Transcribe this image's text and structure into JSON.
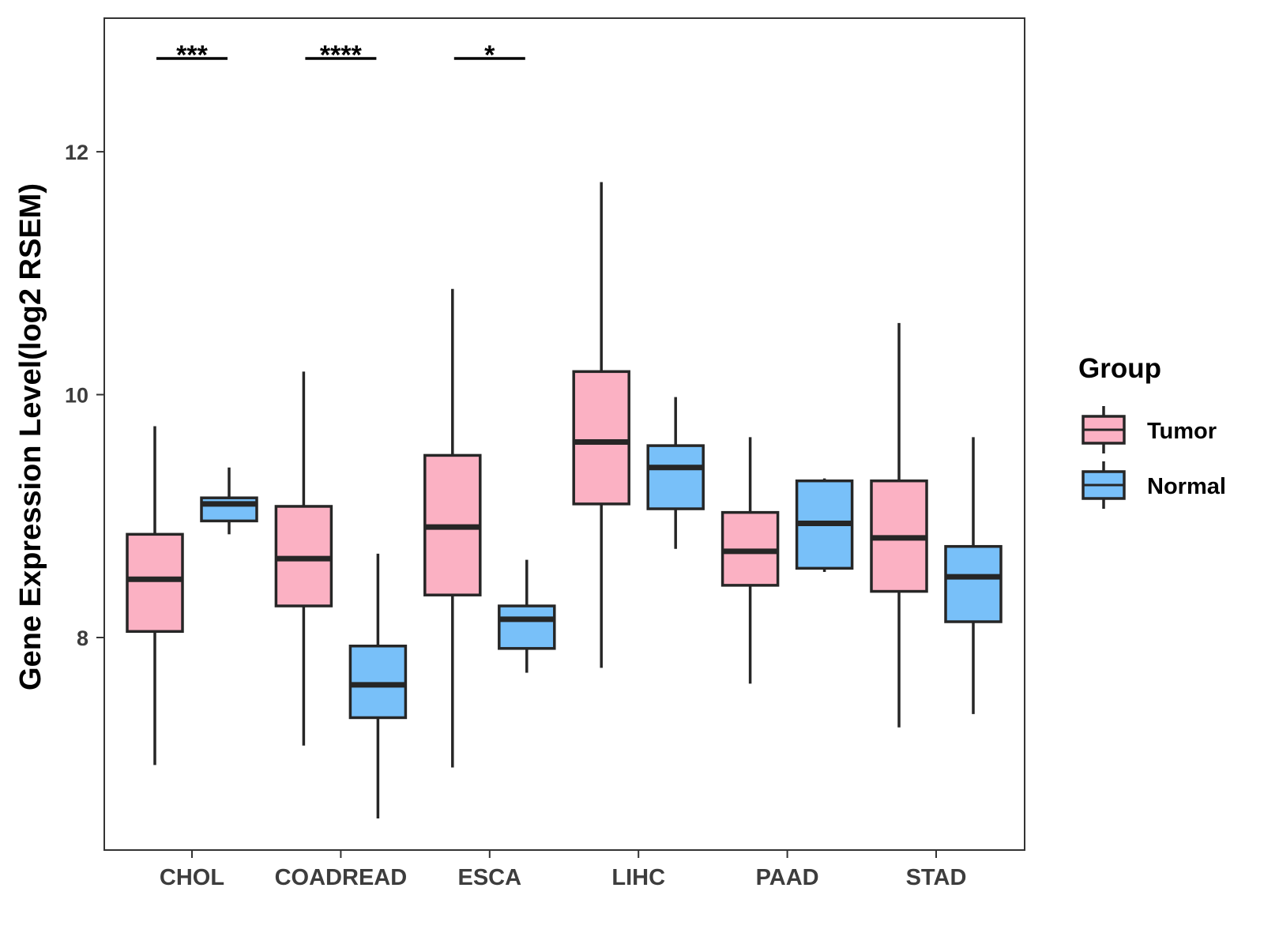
{
  "chart_data": {
    "type": "boxplot",
    "ylabel": "Gene Expression Level(log2 RSEM)",
    "xlabel": "",
    "ylim": [
      6.25,
      13.1
    ],
    "yticks": [
      8,
      10,
      12
    ],
    "ytick_labels": [
      "8",
      "10",
      "12"
    ],
    "categories": [
      "CHOL",
      "COADREAD",
      "ESCA",
      "LIHC",
      "PAAD",
      "STAD"
    ],
    "legend": {
      "title": "Group",
      "position": "right",
      "entries": [
        "Tumor",
        "Normal"
      ]
    },
    "colors": {
      "Tumor": "#FBB1C3",
      "Normal": "#78C0F9",
      "outline": "#262626"
    },
    "series": [
      {
        "name": "Tumor",
        "boxes": [
          {
            "category": "CHOL",
            "min": 6.95,
            "q1": 8.05,
            "median": 8.48,
            "q3": 8.85,
            "max": 9.74
          },
          {
            "category": "COADREAD",
            "min": 7.11,
            "q1": 8.26,
            "median": 8.65,
            "q3": 9.08,
            "max": 10.19
          },
          {
            "category": "ESCA",
            "min": 6.93,
            "q1": 8.35,
            "median": 8.91,
            "q3": 9.5,
            "max": 10.87
          },
          {
            "category": "LIHC",
            "min": 7.75,
            "q1": 9.1,
            "median": 9.61,
            "q3": 10.19,
            "max": 11.75
          },
          {
            "category": "PAAD",
            "min": 7.62,
            "q1": 8.43,
            "median": 8.71,
            "q3": 9.03,
            "max": 9.65
          },
          {
            "category": "STAD",
            "min": 7.26,
            "q1": 8.38,
            "median": 8.82,
            "q3": 9.29,
            "max": 10.59
          }
        ]
      },
      {
        "name": "Normal",
        "boxes": [
          {
            "category": "CHOL",
            "min": 8.85,
            "q1": 8.96,
            "median": 9.1,
            "q3": 9.15,
            "max": 9.4
          },
          {
            "category": "COADREAD",
            "min": 6.51,
            "q1": 7.34,
            "median": 7.61,
            "q3": 7.93,
            "max": 8.69
          },
          {
            "category": "ESCA",
            "min": 7.71,
            "q1": 7.91,
            "median": 8.15,
            "q3": 8.26,
            "max": 8.64
          },
          {
            "category": "LIHC",
            "min": 8.73,
            "q1": 9.06,
            "median": 9.4,
            "q3": 9.58,
            "max": 9.98
          },
          {
            "category": "PAAD",
            "min": 8.54,
            "q1": 8.57,
            "median": 8.94,
            "q3": 9.29,
            "max": 9.31
          },
          {
            "category": "STAD",
            "min": 7.37,
            "q1": 8.13,
            "median": 8.5,
            "q3": 8.75,
            "max": 9.65
          }
        ]
      }
    ],
    "annotations": [
      {
        "category": "CHOL",
        "text": "***"
      },
      {
        "category": "COADREAD",
        "text": "****"
      },
      {
        "category": "ESCA",
        "text": "*"
      }
    ]
  }
}
